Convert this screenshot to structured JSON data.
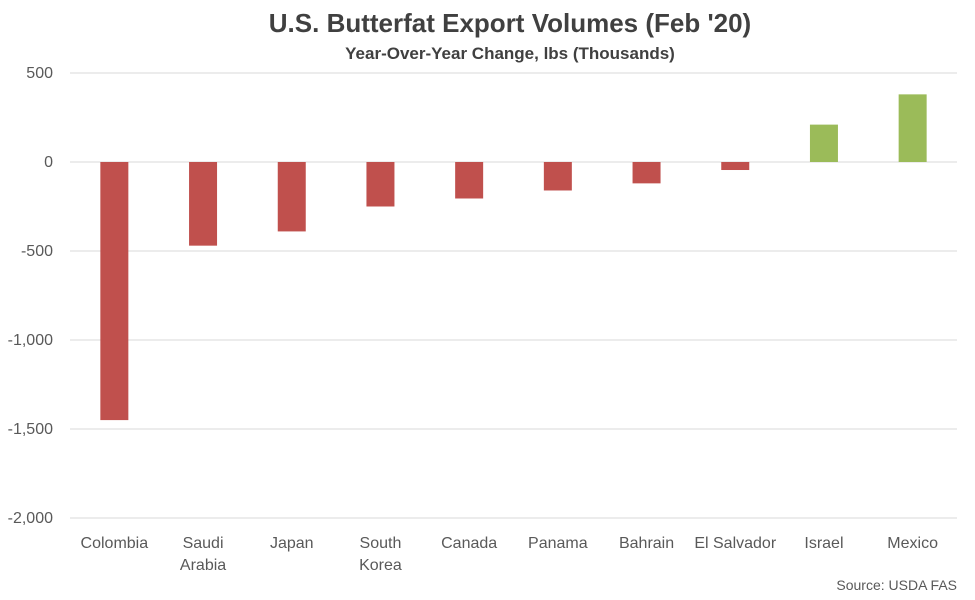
{
  "chart_data": {
    "type": "bar",
    "title": "U.S. Butterfat Export Volumes (Feb '20)",
    "subtitle": "Year-Over-Year Change, lbs (Thousands)",
    "categories": [
      "Colombia",
      "Saudi Arabia",
      "Japan",
      "South Korea",
      "Canada",
      "Panama",
      "Bahrain",
      "El Salvador",
      "Israel",
      "Mexico"
    ],
    "category_lines": [
      [
        "Colombia"
      ],
      [
        "Saudi",
        "Arabia"
      ],
      [
        "Japan"
      ],
      [
        "South",
        "Korea"
      ],
      [
        "Canada"
      ],
      [
        "Panama"
      ],
      [
        "Bahrain"
      ],
      [
        "El Salvador"
      ],
      [
        "Israel"
      ],
      [
        "Mexico"
      ]
    ],
    "values": [
      -1450,
      -470,
      -390,
      -250,
      -205,
      -160,
      -120,
      -45,
      210,
      380
    ],
    "ylim": [
      -2000,
      500
    ],
    "yticks": [
      500,
      0,
      -500,
      -1000,
      -1500,
      -2000
    ],
    "ytick_labels": [
      "500",
      "0",
      "-500",
      "-1,000",
      "-1,500",
      "-2,000"
    ],
    "xlabel": "",
    "ylabel": "",
    "grid": true,
    "legend": "none",
    "colors": {
      "negative": "#c0504d",
      "positive": "#9bbb59",
      "grid": "#d9d9d9",
      "text": "#595959",
      "title": "#404040"
    },
    "source": "Source: USDA FAS"
  }
}
